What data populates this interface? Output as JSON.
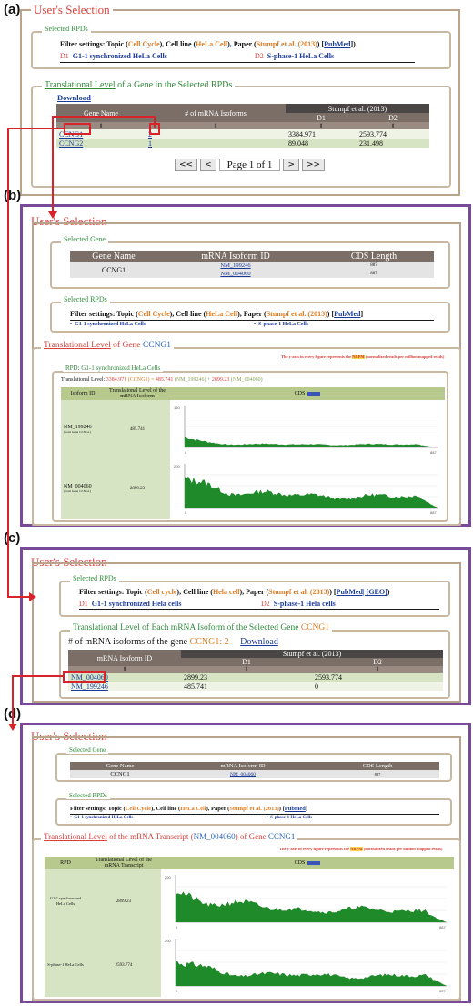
{
  "panels": {
    "a": "(a)",
    "b": "(b)",
    "c": "(c)",
    "d": "(d)"
  },
  "users_selection": "User's Selection",
  "panel_a": {
    "selected_rpds_legend": "Selected RPDs",
    "filter": {
      "prefix": "Filter settings: Topic (",
      "topic": "Cell Cycle",
      "mid1": "), Cell line (",
      "cell_line": "HeLa Cell",
      "mid2": "), Paper (",
      "paper": "Stumpf et al. (2013)",
      "mid3": ") [",
      "pubmed": "PubMed",
      "end": "])"
    },
    "rpds": [
      {
        "id": "D1",
        "name": "G1-1 synchronized HeLa Cells"
      },
      {
        "id": "D2",
        "name": "S-phase-1 HeLa Cells"
      }
    ],
    "level_legend_1": "Translational Level",
    "level_legend_2": " of a Gene in the Selected RPDs",
    "download": "Download",
    "table": {
      "col_gene": "Gene Name",
      "col_isoforms": "# of mRNA Isoforms",
      "col_paper": "Stumpf et al. (2013)",
      "col_d1": "D1",
      "col_d2": "D2",
      "sort": "⇕",
      "rows": [
        {
          "gene": "CCNG1",
          "isoforms": "2",
          "d1": "3384.971",
          "d2": "2593.774"
        },
        {
          "gene": "CCNG2",
          "isoforms": "1",
          "d1": "89.048",
          "d2": "231.498"
        }
      ]
    },
    "pager": {
      "first": "<<",
      "prev": "<",
      "page": "Page 1 of 1",
      "next": ">",
      "last": ">>"
    }
  },
  "panel_b": {
    "selected_gene_legend": "Selected Gene",
    "gene_table": {
      "col_name": "Gene Name",
      "col_isoform": "mRNA Isoform ID",
      "col_cds": "CDS Length",
      "gene": "CCNG1",
      "isoforms": [
        "NM_199246",
        "NM_004060"
      ],
      "cds": [
        "887",
        "887"
      ]
    },
    "selected_rpds_legend": "Selected RPDs",
    "filter": {
      "prefix": "Filter settings: Topic (",
      "topic": "Cell Cycle",
      "mid1": "), Cell line (",
      "cell_line": "HeLa Cell",
      "mid2": "), Paper (",
      "paper": "Stumpf et al. (2013)",
      "mid3": ") [",
      "pubmed": "PubMed",
      "end": "]"
    },
    "rpds": [
      "G1-1 synchronized HeLa Cells",
      "S-phase-1 HeLa Cells"
    ],
    "level_legend_1": "Translational Level",
    "level_legend_2": " of Gene ",
    "level_legend_gene": "CCNG1",
    "y_note_1": "The y-axis in every figure represents the ",
    "y_note_hl": "NRPM",
    "y_note_2": " (normalized reads per million mapped reads)",
    "rpd_title": "RPD: G1-1 synchronized HeLa Cells",
    "tl_line": {
      "prefix": "Translational Level: ",
      "total": "3384.971",
      "gene": " (CCNG1) = ",
      "v1": "485.741",
      "iso1": " (NM_199246) + ",
      "v2": "2899.23",
      "iso2": " (NM_004060)"
    },
    "plot_table": {
      "col_isoform": "Isoform ID",
      "col_level": "Translational Level of the mRNA Isoform",
      "col_cds": "CDS",
      "rows": [
        {
          "id": "NM_199246",
          "sub": "(from Gene CCNG1)",
          "level": "485.741",
          "ymax": "150",
          "xend": "887"
        },
        {
          "id": "NM_004060",
          "sub": "(from Gene CCNG1)",
          "level": "2899.23",
          "ymax": "200",
          "xend": "887"
        }
      ]
    }
  },
  "panel_c": {
    "selected_rpds_legend": "Selected RPDs",
    "filter": {
      "prefix": "Filter settings: Topic (",
      "topic": "Cell cycle",
      "mid1": "), Cell line (",
      "cell_line": "Hela cell",
      "mid2": "), Paper (",
      "paper": "Stumpf et al. (2013)",
      "mid3": ") [",
      "pubmed": "PubMed| [GEO]",
      "end": ")"
    },
    "rpds": [
      {
        "id": "D1",
        "name": "G1-1 synchronized Hela cells"
      },
      {
        "id": "D2",
        "name": "S-phase-1 Hela cells"
      }
    ],
    "level_legend": "Translational Level of Each mRNA Isoform of the Selected Gene ",
    "level_legend_gene": "CCNG1",
    "isoform_count_label": "# of mRNA isoforms of the gene ",
    "isoform_count_gene": "CCNG1: 2",
    "download": "Download",
    "table": {
      "col_isoform": "mRNA Isoform ID",
      "col_paper": "Stumpf et al. (2013)",
      "col_d1": "D1",
      "col_d2": "D2",
      "sort": "⇕",
      "rows": [
        {
          "id": "NM_004060",
          "d1": "2899.23",
          "d2": "2593.774"
        },
        {
          "id": "NM_199246",
          "d1": "485.741",
          "d2": "0"
        }
      ]
    }
  },
  "panel_d": {
    "selected_gene_legend": "Selected Gene",
    "gene_table": {
      "col_name": "Gene Name",
      "col_isoform": "mRNA Isoform ID",
      "col_cds": "CDS Length",
      "gene": "CCNG1",
      "isoform": "NM_004060",
      "cds": "887"
    },
    "selected_rpds_legend": "Selected RPDs",
    "filter": {
      "prefix": "Filter settings: Topic (",
      "topic": "Cell Cycle",
      "mid1": "), Cell line (",
      "cell_line": "HeLa Cell",
      "mid2": "), Paper (",
      "paper": "Stumpf et al. (2013)",
      "mid3": ") [",
      "pubmed": "Pubmed",
      "end": "]"
    },
    "rpds": [
      "G1-1 synchronized HeLa Cells",
      "S-phase-1 HeLa Cells"
    ],
    "level_legend_1": "Translational Level",
    "level_legend_2": " of the mRNA Transcript (",
    "level_legend_iso": "NM_004060",
    "level_legend_3": ") of Gene ",
    "level_legend_gene": "CCNG1",
    "y_note_1": "The y-axis in every figure represents the ",
    "y_note_hl": "NRPM",
    "y_note_2": " (normalized reads per million mapped reads)",
    "plot_table": {
      "col_rpd": "RPD",
      "col_level": "Translational Level of the mRNA Transcript",
      "col_cds": "CDS",
      "rows": [
        {
          "rpd": "G1-1 synchronized HeLa Cells",
          "level": "2899.23",
          "ymax": "200",
          "xend": "887"
        },
        {
          "rpd": "S-phase-1 HeLa Cells",
          "level": "2593.774",
          "ymax": "200",
          "xend": "887"
        }
      ]
    }
  },
  "colors": {
    "pink": "#d9403a",
    "green": "#2e8b3a",
    "blue": "#2a66b8",
    "orange": "#e07a1f",
    "plot_fill": "#1f8a2a",
    "arrow": "#d8232a",
    "purple_border": "#7a4a9a"
  }
}
